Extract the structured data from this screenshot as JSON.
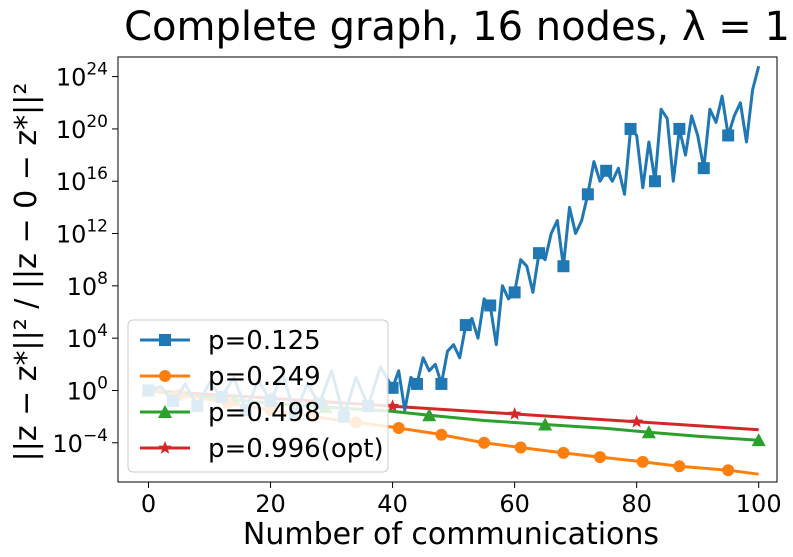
{
  "chart_data": {
    "type": "line",
    "title": "Complete graph, 16 nodes, λ = 1",
    "xlabel": "Number of communications",
    "ylabel": "||z − z*||² / ||z − 0 − z*||²",
    "xlim": [
      -5,
      103
    ],
    "ylog": true,
    "ylim_exp": [
      -7,
      25.5
    ],
    "x_ticks": [
      0,
      20,
      40,
      60,
      80,
      100
    ],
    "x_tick_labels": [
      "0",
      "20",
      "40",
      "60",
      "80",
      "100"
    ],
    "y_ticks_exp": [
      -4,
      0,
      4,
      8,
      12,
      16,
      20,
      24
    ],
    "y_tick_base": "10",
    "y_tick_exps": [
      "−4",
      "0",
      "4",
      "8",
      "12",
      "16",
      "20",
      "24"
    ],
    "grid": false,
    "legend_position": "lower-left",
    "series": [
      {
        "name": "p=0.125",
        "color": "#1f77b4",
        "marker": "square",
        "x": [
          0,
          2,
          4,
          5,
          6,
          8,
          10,
          12,
          14,
          16,
          18,
          20,
          22,
          24,
          26,
          28,
          30,
          32,
          34,
          36,
          38,
          40,
          41,
          42,
          43,
          44,
          45,
          46,
          47,
          48,
          49,
          50,
          51,
          52,
          53,
          54,
          55,
          56,
          57,
          58,
          59,
          60,
          61,
          62,
          63,
          64,
          65,
          66,
          67,
          68,
          69,
          70,
          71,
          72,
          73,
          74,
          75,
          76,
          77,
          78,
          79,
          80,
          81,
          82,
          83,
          84,
          85,
          86,
          87,
          88,
          89,
          90,
          91,
          92,
          93,
          94,
          95,
          96,
          97,
          98,
          99,
          100
        ],
        "y_log10": [
          0,
          0.3,
          -0.8,
          -0.3,
          0.5,
          -1.2,
          0.6,
          -0.5,
          1.0,
          -1.5,
          0.8,
          -0.8,
          1.2,
          -1.8,
          0.5,
          -1.0,
          1.5,
          -2.0,
          1.0,
          -1.2,
          1.8,
          0.2,
          1.5,
          -1.5,
          1.0,
          0.5,
          2.5,
          1.5,
          2.0,
          0.5,
          3.0,
          3.5,
          2.5,
          5.0,
          5.5,
          4.0,
          7.0,
          6.5,
          3.5,
          8.0,
          7.0,
          7.5,
          10.0,
          9.5,
          7.5,
          10.5,
          10.0,
          12.0,
          13.0,
          9.5,
          14.0,
          12.0,
          13.0,
          15.0,
          17.5,
          16.0,
          16.8,
          16.0,
          17.0,
          15.0,
          20.0,
          19.5,
          15.5,
          19.0,
          16.0,
          21.5,
          20.8,
          16.0,
          20.0,
          18.0,
          21.0,
          19.5,
          17.0,
          21.5,
          20.5,
          22.5,
          19.5,
          21.0,
          22.0,
          19.0,
          23.0,
          24.8
        ],
        "marker_x": [
          0,
          4,
          8,
          12,
          16,
          20,
          24,
          28,
          32,
          36,
          40,
          44,
          48,
          52,
          56,
          60,
          64,
          68,
          72,
          75,
          79,
          83,
          87,
          91,
          95
        ]
      },
      {
        "name": "p=0.249",
        "color": "#ff7f0e",
        "marker": "circle",
        "x": [
          0,
          10,
          20,
          30,
          40,
          47,
          55,
          60,
          65,
          72,
          80,
          87,
          95,
          100
        ],
        "y_log10": [
          0,
          -0.7,
          -1.5,
          -2.2,
          -2.8,
          -3.3,
          -4.0,
          -4.3,
          -4.6,
          -5.0,
          -5.4,
          -5.8,
          -6.1,
          -6.4
        ],
        "marker_x": [
          0,
          5,
          13,
          20,
          27,
          34,
          41,
          48,
          55,
          61,
          68,
          74,
          81,
          87,
          95
        ]
      },
      {
        "name": "p=0.498",
        "color": "#2ca02c",
        "marker": "triangle",
        "x": [
          0,
          20,
          40,
          46,
          55,
          65,
          75,
          82,
          90,
          100
        ],
        "y_log10": [
          0,
          -1.0,
          -1.6,
          -1.9,
          -2.3,
          -2.6,
          -2.9,
          -3.2,
          -3.5,
          -3.8
        ],
        "marker_x": [
          0,
          14,
          29,
          46,
          65,
          82,
          100
        ]
      },
      {
        "name": "p=0.996(opt)",
        "color": "#d62728",
        "marker": "star",
        "x": [
          0,
          20,
          40,
          60,
          80,
          100
        ],
        "y_log10": [
          0,
          -0.6,
          -1.2,
          -1.8,
          -2.4,
          -3.0
        ],
        "marker_x": [
          0,
          20,
          40,
          60,
          80
        ]
      }
    ]
  }
}
